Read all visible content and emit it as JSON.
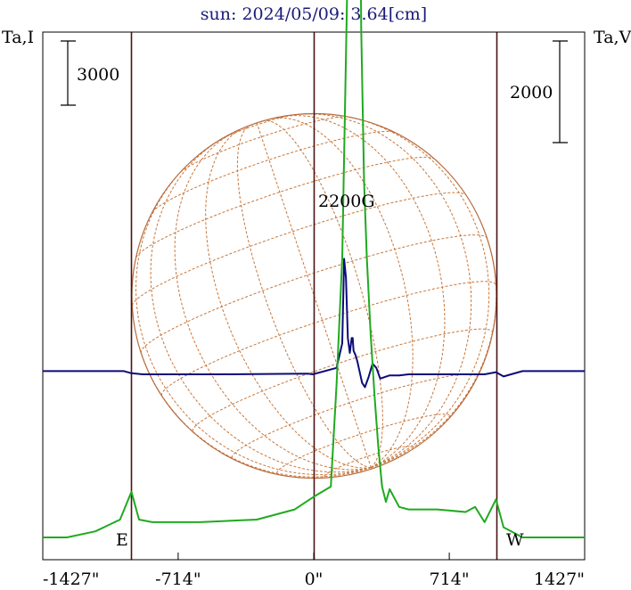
{
  "title": "sun: 2024/05/09: 3.64[cm]",
  "left_axis_label": "Ta,I",
  "right_axis_label": "Ta,V",
  "left_scale_label": "3000",
  "right_scale_label": "2000",
  "peak_label": "2200G",
  "east_label": "E",
  "west_label": "W",
  "colors": {
    "frame": "#000000",
    "title": "#1a1a7a",
    "disk": "#b86a3c",
    "grid": "#c8773a",
    "vertical_lines": "#4a1414",
    "intensity": "#0b0b7a",
    "polarization": "#1faa1f"
  },
  "chart_data": {
    "type": "line",
    "title": "sun: 2024/05/09: 3.64[cm]",
    "x_unit": "arcsec",
    "xlim": [
      -1427,
      1427
    ],
    "x_ticks": [
      -1427,
      -714,
      0,
      714,
      1427
    ],
    "x_tick_labels": [
      "-1427\"",
      "-714\"",
      "0\"",
      "714\"",
      "1427\""
    ],
    "vertical_markers": [
      -960,
      0,
      960
    ],
    "solar_disk_radius_arcsec": 960,
    "grid": true,
    "legend": "none",
    "series": [
      {
        "key": "I",
        "color": "#0b0b7a",
        "x": [
          -1427,
          -1000,
          -960,
          -900,
          -500,
          -30,
          -5,
          120,
          150,
          160,
          170,
          180,
          190,
          200,
          205,
          210,
          220,
          230,
          240,
          255,
          270,
          290,
          310,
          330,
          350,
          400,
          450,
          500,
          700,
          900,
          960,
          1000,
          1100,
          1427
        ],
        "y": [
          150,
          150,
          50,
          0,
          0,
          30,
          0,
          300,
          1450,
          5400,
          4500,
          1700,
          1000,
          1700,
          1700,
          1100,
          900,
          600,
          200,
          -400,
          -600,
          -100,
          500,
          300,
          -200,
          -50,
          -50,
          0,
          0,
          0,
          100,
          -100,
          150,
          150
        ]
      },
      {
        "key": "V",
        "color": "#1faa1f",
        "x": [
          -1427,
          -1300,
          -1150,
          -1020,
          -960,
          -920,
          -850,
          -600,
          -300,
          -100,
          0,
          90,
          120,
          150,
          180,
          210,
          230,
          240,
          250,
          265,
          280,
          300,
          320,
          340,
          360,
          380,
          400,
          450,
          500,
          650,
          800,
          850,
          900,
          960,
          1000,
          1100,
          1427
        ],
        "y": [
          0,
          0,
          120,
          350,
          900,
          350,
          300,
          300,
          350,
          550,
          800,
          1000,
          3000,
          5500,
          11500,
          14500,
          15400,
          15000,
          10000,
          7000,
          5500,
          4000,
          2800,
          1800,
          1000,
          700,
          950,
          600,
          550,
          550,
          500,
          600,
          300,
          750,
          200,
          0,
          0
        ]
      }
    ]
  }
}
